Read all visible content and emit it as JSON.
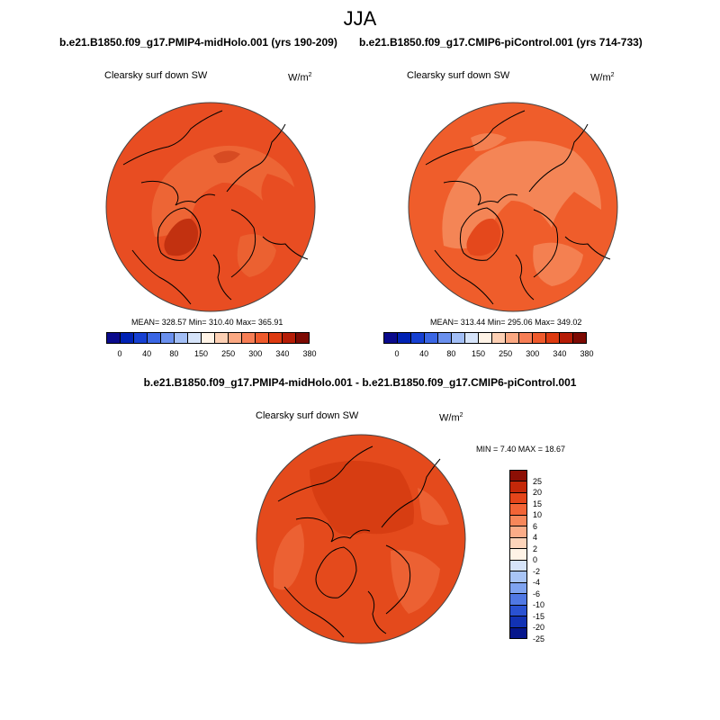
{
  "figure": {
    "season": "JJA"
  },
  "panels": {
    "left": {
      "title": "b.e21.B1850.f09_g17.PMIP4-midHolo.001 (yrs 190-209)",
      "variable": "Clearsky surf down SW",
      "units_base": "W/m",
      "units_exp": "2",
      "stats": "MEAN= 328.57  Min= 310.40  Max= 365.91"
    },
    "right": {
      "title": "b.e21.B1850.f09_g17.CMIP6-piControl.001 (yrs 714-733)",
      "variable": "Clearsky surf down SW",
      "units_base": "W/m",
      "units_exp": "2",
      "stats": "MEAN= 313.44  Min= 295.06  Max= 349.02"
    },
    "diff": {
      "title": "b.e21.B1850.f09_g17.PMIP4-midHolo.001 - b.e21.B1850.f09_g17.CMIP6-piControl.001",
      "variable": "Clearsky surf down SW",
      "units_base": "W/m",
      "units_exp": "2",
      "stats": "MIN =   7.40 MAX =  18.67"
    }
  },
  "colorbars": {
    "abs": {
      "labels": [
        "0",
        "40",
        "80",
        "150",
        "250",
        "300",
        "340",
        "380"
      ],
      "colors": [
        "#0a0a8c",
        "#0022b4",
        "#1640d2",
        "#3a66e4",
        "#6a90ee",
        "#a2bef6",
        "#d6e4fa",
        "#fff3e6",
        "#fdd0b4",
        "#fba882",
        "#f77e55",
        "#ef5a2c",
        "#dd3a10",
        "#b51c06",
        "#7d0a03"
      ]
    },
    "diff": {
      "labels": [
        "25",
        "20",
        "15",
        "10",
        "6",
        "4",
        "2",
        "0",
        "-2",
        "-4",
        "-6",
        "-10",
        "-15",
        "-20",
        "-25"
      ],
      "colors": [
        "#8c0f05",
        "#c42809",
        "#e4451a",
        "#f26436",
        "#f7875a",
        "#fbac88",
        "#fdd4ba",
        "#fff3e6",
        "#d6e4fa",
        "#a8c4f6",
        "#7fa3f0",
        "#5078e4",
        "#2a52d2",
        "#1232b4",
        "#06168c"
      ]
    }
  },
  "map_colors": {
    "left": {
      "base": "#e84d22",
      "light": "#f07a45",
      "dark": "#c23110"
    },
    "right": {
      "base": "#ef5d2b",
      "light": "#f6976a",
      "dark": "#e4481c"
    },
    "diff": {
      "base": "#e44a1c",
      "light": "#ec6133",
      "dark": "#d33a10"
    }
  }
}
